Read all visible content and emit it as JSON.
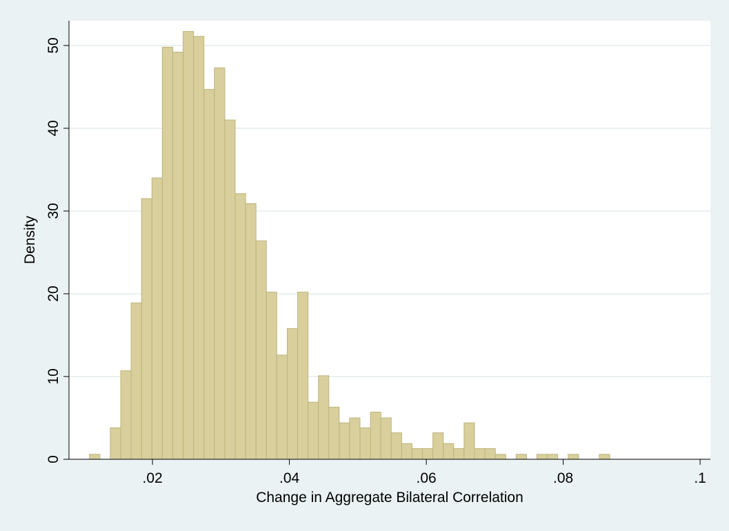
{
  "chart_data": {
    "type": "histogram",
    "x_label": "Change in Aggregate Bilateral Correlation",
    "y_label": "Density",
    "bins": [
      0.0108,
      0.01232,
      0.01384,
      0.01536,
      0.01688,
      0.0184,
      0.01992,
      0.02144,
      0.02296,
      0.02448,
      0.026,
      0.02752,
      0.02904,
      0.03056,
      0.03208,
      0.0336,
      0.03512,
      0.03664,
      0.03816,
      0.03968,
      0.0412,
      0.04272,
      0.04424,
      0.04576,
      0.04728,
      0.0488,
      0.05032,
      0.05184,
      0.05336,
      0.05488,
      0.0564,
      0.05792,
      0.05944,
      0.06096,
      0.06248,
      0.064,
      0.06552,
      0.06704,
      0.06856,
      0.07008,
      0.0716,
      0.07312,
      0.07464,
      0.07616,
      0.07768,
      0.0792,
      0.08072,
      0.08224,
      0.08376,
      0.08528,
      0.0868
    ],
    "values": [
      0.6,
      0,
      3.8,
      10.7,
      18.9,
      31.5,
      34.0,
      49.8,
      49.2,
      51.7,
      51.1,
      44.7,
      47.3,
      41.0,
      32.1,
      30.9,
      26.4,
      20.2,
      12.6,
      15.8,
      20.2,
      6.9,
      10.1,
      6.3,
      4.4,
      5.0,
      3.8,
      5.7,
      5.0,
      3.2,
      1.9,
      1.3,
      1.3,
      3.2,
      1.9,
      1.3,
      4.4,
      1.3,
      1.3,
      0.6,
      0,
      0.6,
      0,
      0.6,
      0.6,
      0,
      0.6,
      0,
      0,
      0.6
    ],
    "color": "#d8cf9c",
    "edge_color": "#bdb37c",
    "xlim": [
      0.0078,
      0.1015
    ],
    "ylim": [
      0,
      53
    ],
    "xticks": [
      {
        "value": 0.02,
        "label": ".02"
      },
      {
        "value": 0.04,
        "label": ".04"
      },
      {
        "value": 0.06,
        "label": ".06"
      },
      {
        "value": 0.08,
        "label": ".08"
      },
      {
        "value": 0.1,
        "label": ".1"
      }
    ],
    "yticks": [
      0,
      10,
      20,
      30,
      40,
      50
    ],
    "grid": true
  }
}
